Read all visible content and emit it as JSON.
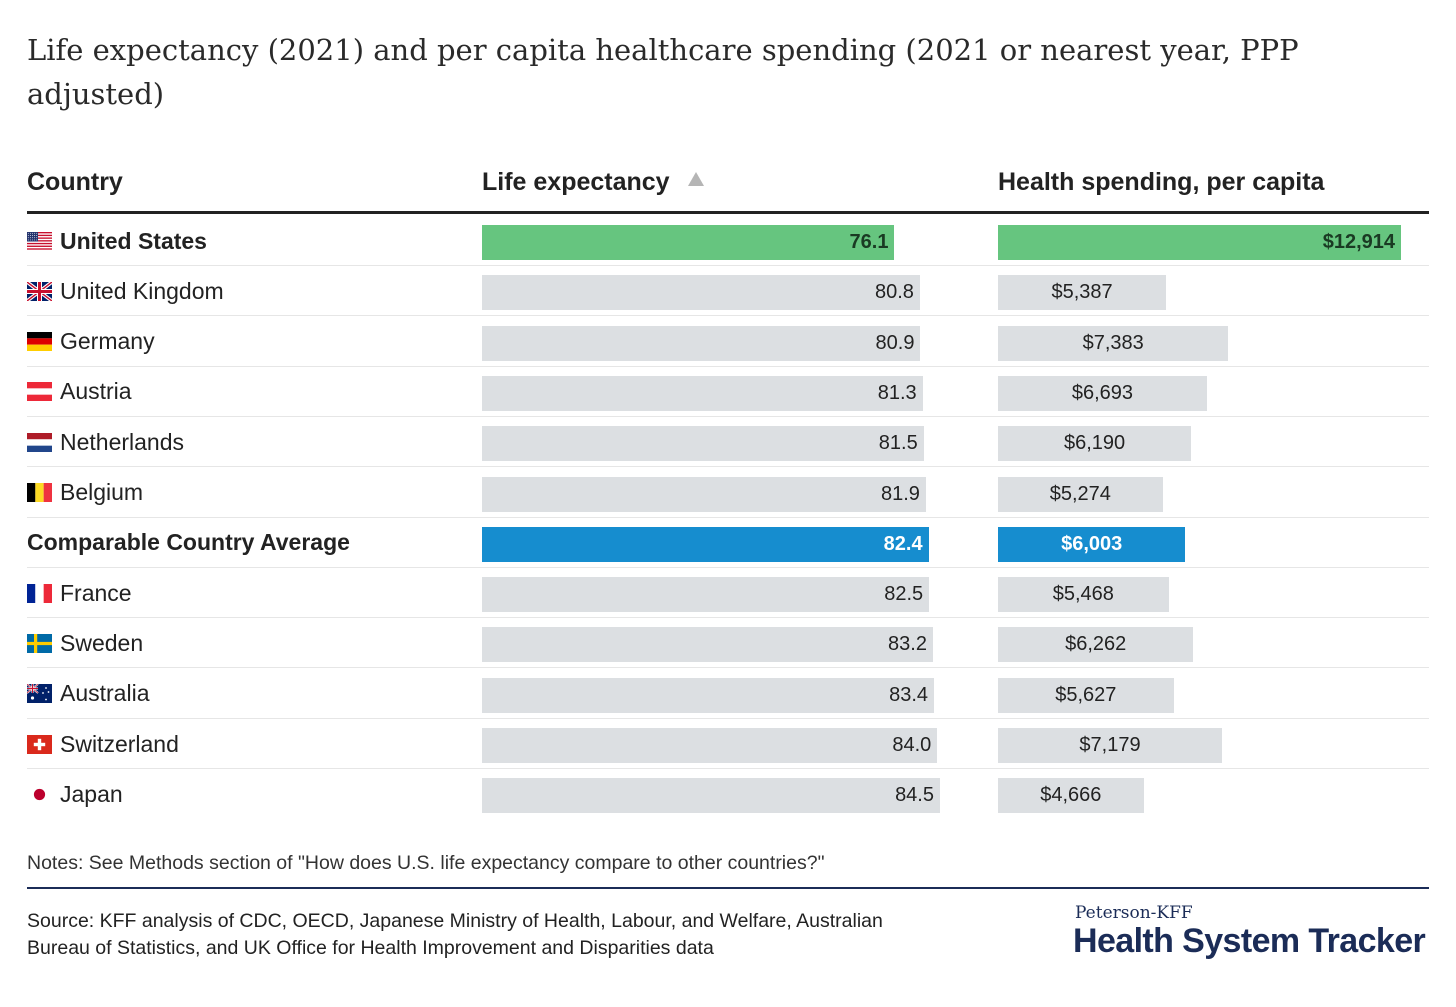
{
  "title": "Life expectancy (2021) and per capita healthcare spending (2021 or nearest year, PPP adjusted)",
  "headers": {
    "country": "Country",
    "life": "Life expectancy",
    "spend": "Health spending, per capita"
  },
  "colors": {
    "us": "#66c57f",
    "average": "#168dcf",
    "other": "#dcdfe2"
  },
  "chart_data": {
    "type": "table",
    "sorted_by": "life_expectancy",
    "sort_direction": "ascending",
    "columns": [
      "Country",
      "Life expectancy",
      "Health spending, per capita"
    ],
    "rows": [
      {
        "country": "United States",
        "flag": "us-flag-icon",
        "life": 76.1,
        "life_label": "76.1",
        "spend": 12914,
        "spend_label": "$12,914",
        "highlight": "us"
      },
      {
        "country": "United Kingdom",
        "flag": "uk-flag-icon",
        "life": 80.8,
        "life_label": "80.8",
        "spend": 5387,
        "spend_label": "$5,387",
        "highlight": "none"
      },
      {
        "country": "Germany",
        "flag": "germany-flag-icon",
        "life": 80.9,
        "life_label": "80.9",
        "spend": 7383,
        "spend_label": "$7,383",
        "highlight": "none"
      },
      {
        "country": "Austria",
        "flag": "austria-flag-icon",
        "life": 81.3,
        "life_label": "81.3",
        "spend": 6693,
        "spend_label": "$6,693",
        "highlight": "none"
      },
      {
        "country": "Netherlands",
        "flag": "netherlands-flag-icon",
        "life": 81.5,
        "life_label": "81.5",
        "spend": 6190,
        "spend_label": "$6,190",
        "highlight": "none"
      },
      {
        "country": "Belgium",
        "flag": "belgium-flag-icon",
        "life": 81.9,
        "life_label": "81.9",
        "spend": 5274,
        "spend_label": "$5,274",
        "highlight": "none"
      },
      {
        "country": "Comparable Country Average",
        "flag": "",
        "life": 82.4,
        "life_label": "82.4",
        "spend": 6003,
        "spend_label": "$6,003",
        "highlight": "average"
      },
      {
        "country": "France",
        "flag": "france-flag-icon",
        "life": 82.5,
        "life_label": "82.5",
        "spend": 5468,
        "spend_label": "$5,468",
        "highlight": "none"
      },
      {
        "country": "Sweden",
        "flag": "sweden-flag-icon",
        "life": 83.2,
        "life_label": "83.2",
        "spend": 6262,
        "spend_label": "$6,262",
        "highlight": "none"
      },
      {
        "country": "Australia",
        "flag": "australia-flag-icon",
        "life": 83.4,
        "life_label": "83.4",
        "spend": 5627,
        "spend_label": "$5,627",
        "highlight": "none"
      },
      {
        "country": "Switzerland",
        "flag": "switzerland-flag-icon",
        "life": 84.0,
        "life_label": "84.0",
        "spend": 7179,
        "spend_label": "$7,179",
        "highlight": "none"
      },
      {
        "country": "Japan",
        "flag": "japan-flag-icon",
        "life": 84.5,
        "life_label": "84.5",
        "spend": 4666,
        "spend_label": "$4,666",
        "highlight": "none"
      }
    ]
  },
  "notes": "Notes: See Methods section of \"How does U.S. life expectancy compare to other countries?\"",
  "source": "Source: KFF analysis of CDC, OECD, Japanese Ministry of Health, Labour, and Welfare, Australian Bureau of Statistics, and UK Office for Health Improvement and Disparities data",
  "brand": {
    "top": "Peterson-KFF",
    "main": "Health System Tracker"
  }
}
